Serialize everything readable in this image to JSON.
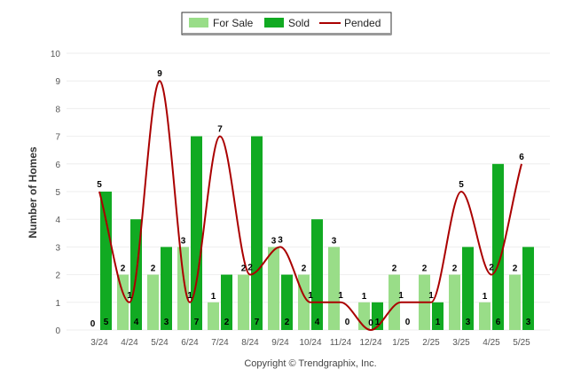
{
  "chart_data": {
    "type": "bar",
    "ylabel": "Number of Homes",
    "xlabel": "",
    "title": "",
    "ylim": [
      0,
      10
    ],
    "y_ticks": [
      0,
      1,
      2,
      3,
      4,
      5,
      6,
      7,
      8,
      9,
      10
    ],
    "grid": true,
    "legend_position": "top-center",
    "categories": [
      "3/24",
      "4/24",
      "5/24",
      "6/24",
      "7/24",
      "8/24",
      "9/24",
      "10/24",
      "11/24",
      "12/24",
      "1/25",
      "2/25",
      "3/25",
      "4/25",
      "5/25"
    ],
    "series": [
      {
        "name": "For Sale",
        "type": "bar",
        "color": "#99dd88",
        "values": [
          0,
          2,
          2,
          3,
          1,
          2,
          3,
          2,
          3,
          1,
          2,
          2,
          2,
          1,
          2
        ]
      },
      {
        "name": "Sold",
        "type": "bar",
        "color": "#11aa22",
        "values": [
          5,
          4,
          3,
          7,
          2,
          7,
          2,
          4,
          0,
          1,
          0,
          1,
          3,
          6,
          3
        ]
      },
      {
        "name": "Pended",
        "type": "line",
        "color": "#aa0000",
        "values": [
          5,
          1,
          9,
          1,
          7,
          2,
          3,
          1,
          1,
          0,
          1,
          1,
          5,
          2,
          6
        ]
      }
    ],
    "credit": "Copyright © Trendgraphix, Inc."
  }
}
